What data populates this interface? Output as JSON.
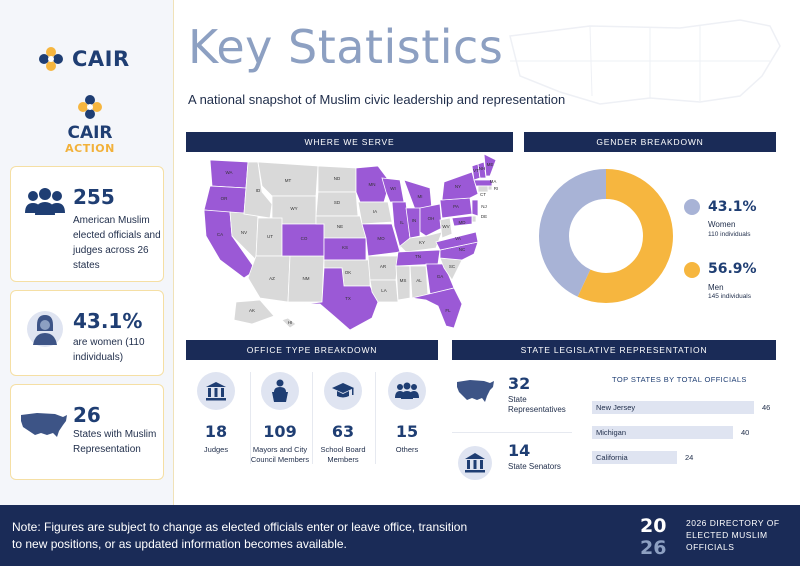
{
  "brand": {
    "cair": "CAIR",
    "cair_action_top": "CAIR",
    "cair_action_bottom": "ACTION"
  },
  "header": {
    "title": "Key Statistics",
    "subtitle": "A national snapshot of Muslim civic leadership and representation"
  },
  "stats": [
    {
      "value": "255",
      "label": "American Muslim elected officials and judges across 26 states",
      "icon": "people-icon"
    },
    {
      "value": "43.1%",
      "label": "are women (110 individuals)",
      "icon": "woman-icon"
    },
    {
      "value": "26",
      "label": "States with Muslim Representation",
      "icon": "us-map-icon"
    }
  ],
  "sections": {
    "where": "WHERE WE SERVE",
    "gender": "GENDER BREAKDOWN",
    "office": "OFFICE TYPE BREAKDOWN",
    "state": "STATE LEGISLATIVE REPRESENTATION"
  },
  "map_states": {
    "highlighted": [
      "WA",
      "OR",
      "CA",
      "CO",
      "MN",
      "KS",
      "IL",
      "IN",
      "MI",
      "OH",
      "PA",
      "NY",
      "VT",
      "NH",
      "ME",
      "MA",
      "NJ",
      "MD",
      "VA",
      "NC",
      "GA",
      "FL",
      "TX",
      "MO",
      "TN",
      "WI"
    ],
    "labels": [
      "WA",
      "OR",
      "CA",
      "NV",
      "ID",
      "MT",
      "WY",
      "UT",
      "AZ",
      "NM",
      "CO",
      "ND",
      "SD",
      "NE",
      "KS",
      "OK",
      "TX",
      "MN",
      "IA",
      "MO",
      "AR",
      "LA",
      "WI",
      "IL",
      "MI",
      "IN",
      "OH",
      "KY",
      "TN",
      "MS",
      "AL",
      "GA",
      "FL",
      "SC",
      "NC",
      "VA",
      "WV",
      "PA",
      "NY",
      "VT",
      "NH",
      "ME",
      "MA",
      "RI",
      "CT",
      "NJ",
      "DE",
      "MD",
      "AK",
      "HI"
    ],
    "colors": {
      "highlight": "#9b59d6",
      "base": "#d9d9d9"
    }
  },
  "gender": {
    "women": {
      "pct": "43.1%",
      "label": "Women",
      "count": "110 individuals",
      "color": "#a8b3d6",
      "value": 43.1
    },
    "men": {
      "pct": "56.9%",
      "label": "Men",
      "count": "145 individuals",
      "color": "#f6b63f",
      "value": 56.9
    }
  },
  "offices": [
    {
      "value": "18",
      "label": "Judges",
      "icon": "courthouse-icon"
    },
    {
      "value": "109",
      "label": "Mayors and City Council Members",
      "icon": "podium-icon"
    },
    {
      "value": "63",
      "label": "School Board Members",
      "icon": "graduation-cap-icon"
    },
    {
      "value": "15",
      "label": "Others",
      "icon": "people-icon"
    }
  ],
  "legislature": {
    "reps": {
      "value": "32",
      "label": "State Representatives"
    },
    "senators": {
      "value": "14",
      "label": "State Senators"
    },
    "top_title": "TOP STATES BY TOTAL OFFICIALS",
    "top_states": [
      {
        "name": "New Jersey",
        "value": 46
      },
      {
        "name": "Michigan",
        "value": 40
      },
      {
        "name": "California",
        "value": 24
      }
    ]
  },
  "footer": {
    "note": "Note: Figures are subject to change as elected officials enter or leave office, transition to new positions, or as updated information becomes available.",
    "year_top": "20",
    "year_bottom": "26",
    "directory": "2026 DIRECTORY OF ELECTED MUSLIM OFFICIALS"
  }
}
